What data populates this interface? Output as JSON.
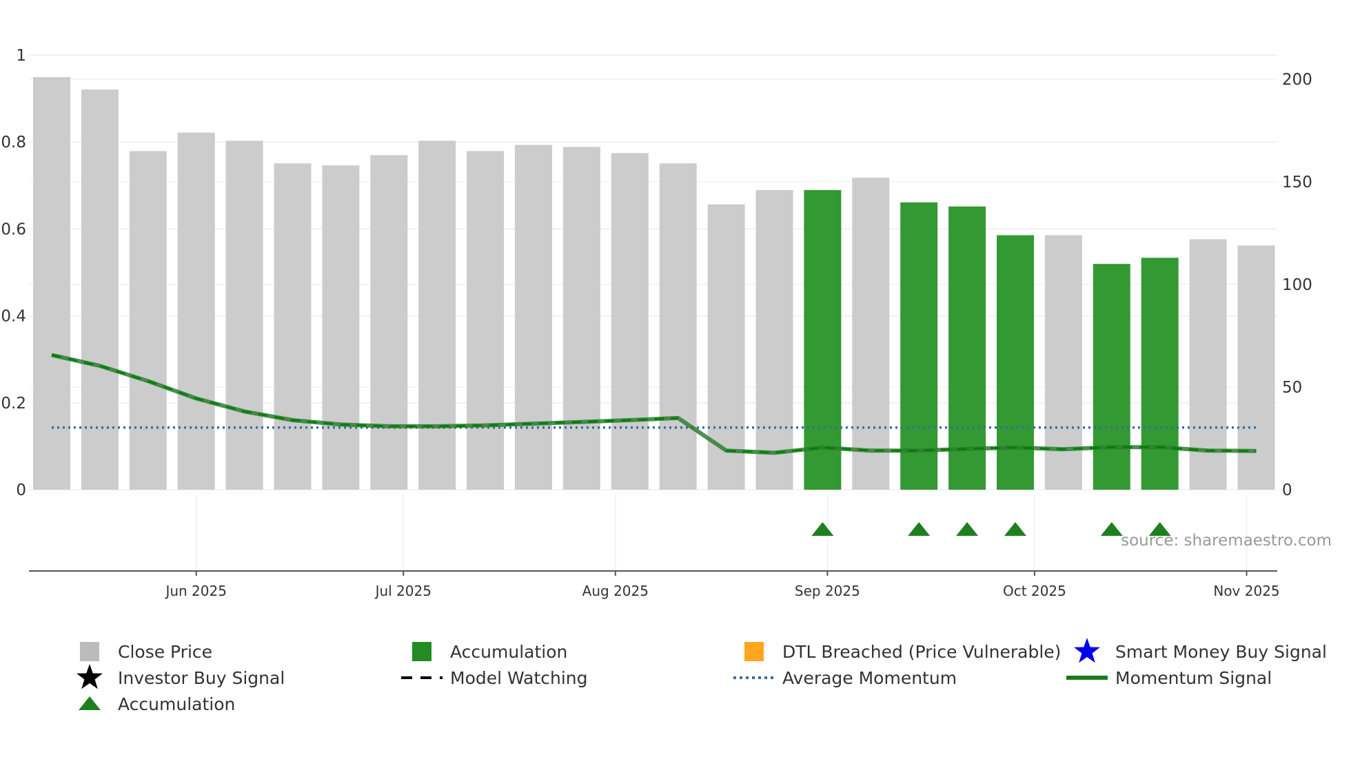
{
  "chart_data": {
    "type": "bar",
    "title": "",
    "xlabel": "",
    "ylabel": "",
    "left_axis": {
      "ylim": [
        0,
        1
      ],
      "ticks": [
        "0",
        "0.2",
        "0.4",
        "0.6",
        "0.8",
        "1"
      ],
      "tick_values": [
        0,
        0.2,
        0.4,
        0.6,
        0.8,
        1
      ]
    },
    "right_axis": {
      "ylim": [
        0,
        200
      ],
      "ticks": [
        "0",
        "50",
        "100",
        "150",
        "200"
      ],
      "tick_values": [
        0,
        50,
        100,
        150,
        200
      ]
    },
    "x_axis": {
      "ticks": [
        "Jun 2025",
        "Jul 2025",
        "Aug 2025",
        "Sep 2025",
        "Oct 2025",
        "Nov 2025"
      ],
      "tick_week_positions": [
        3.0,
        7.3,
        11.7,
        16.1,
        20.4,
        24.8
      ]
    },
    "weeks": [
      {
        "close": 201,
        "state": "close"
      },
      {
        "close": 195,
        "state": "close"
      },
      {
        "close": 165,
        "state": "close"
      },
      {
        "close": 174,
        "state": "close"
      },
      {
        "close": 170,
        "state": "close"
      },
      {
        "close": 159,
        "state": "close"
      },
      {
        "close": 158,
        "state": "close"
      },
      {
        "close": 163,
        "state": "close"
      },
      {
        "close": 170,
        "state": "close"
      },
      {
        "close": 165,
        "state": "close"
      },
      {
        "close": 168,
        "state": "close"
      },
      {
        "close": 167,
        "state": "close"
      },
      {
        "close": 164,
        "state": "close"
      },
      {
        "close": 159,
        "state": "close"
      },
      {
        "close": 139,
        "state": "close"
      },
      {
        "close": 146,
        "state": "close"
      },
      {
        "close": 146,
        "state": "accumulation"
      },
      {
        "close": 152,
        "state": "close"
      },
      {
        "close": 140,
        "state": "accumulation"
      },
      {
        "close": 138,
        "state": "accumulation"
      },
      {
        "close": 124,
        "state": "accumulation"
      },
      {
        "close": 124,
        "state": "close"
      },
      {
        "close": 110,
        "state": "accumulation"
      },
      {
        "close": 113,
        "state": "accumulation"
      },
      {
        "close": 122,
        "state": "close"
      },
      {
        "close": 119,
        "state": "close"
      }
    ],
    "momentum_signal": [
      0.31,
      0.285,
      0.25,
      0.21,
      0.18,
      0.16,
      0.15,
      0.146,
      0.146,
      0.148,
      0.152,
      0.156,
      0.16,
      0.165,
      0.09,
      0.085,
      0.097,
      0.09,
      0.09,
      0.094,
      0.097,
      0.093,
      0.098,
      0.098,
      0.09,
      0.089
    ],
    "momentum_line_segments": [
      {
        "from": 0,
        "to": 13,
        "style": "model-watching-dashed"
      },
      {
        "from": 13,
        "to": 14,
        "style": "solid"
      },
      {
        "from": 14,
        "to": 25,
        "style": "model-watching-dashed"
      }
    ],
    "average_momentum": 0.143,
    "accumulation_markers": [
      16,
      18,
      19,
      20,
      22,
      23
    ],
    "series": [
      {
        "name": "Close Price",
        "axis": "right",
        "kind": "bar"
      },
      {
        "name": "Accumulation",
        "axis": "right",
        "kind": "bar"
      },
      {
        "name": "Momentum Signal",
        "axis": "left",
        "kind": "line"
      },
      {
        "name": "Average Momentum",
        "axis": "left",
        "kind": "hline"
      }
    ],
    "colors": {
      "close_bar": "#cccccc",
      "accumulation_bar": "#339933",
      "momentum_line": "#2e7d32",
      "model_watching_dash": "#008000",
      "average_line": "#3b6e99",
      "triangle": "#1f7f1f",
      "dtl_breached": "#ffa520",
      "smart_money": "#0000ee",
      "investor": "#000000"
    },
    "source_text": "source: sharemaestro.com",
    "legend": [
      {
        "label": "Close Price",
        "symbol": "square",
        "color": "#bbbbbb"
      },
      {
        "label": "Accumulation",
        "symbol": "square",
        "color": "#228b22"
      },
      {
        "label": "DTL Breached (Price Vulnerable)",
        "symbol": "square",
        "color": "#ffa520"
      },
      {
        "label": "Smart Money Buy Signal",
        "symbol": "star",
        "color": "#0000ee"
      },
      {
        "label": "Investor Buy Signal",
        "symbol": "star",
        "color": "#000000"
      },
      {
        "label": "Model Watching",
        "symbol": "dash",
        "color": "#000000"
      },
      {
        "label": "Average Momentum",
        "symbol": "dotted",
        "color": "#3b6e99"
      },
      {
        "label": "Momentum Signal",
        "symbol": "line",
        "color": "#1a7a1a"
      },
      {
        "label": "Accumulation",
        "symbol": "triangle",
        "color": "#1f7f1f"
      }
    ]
  }
}
